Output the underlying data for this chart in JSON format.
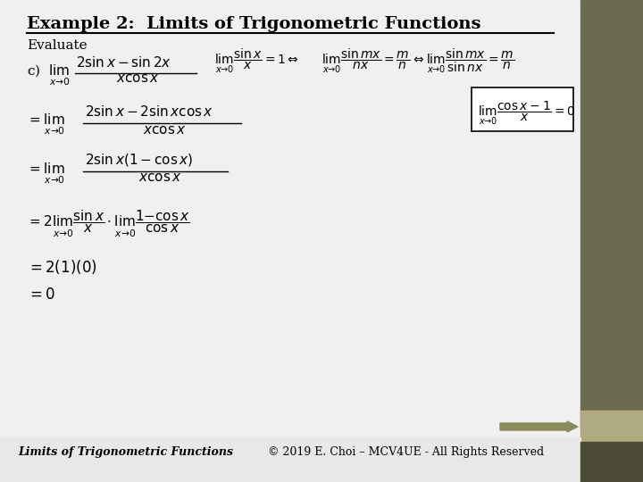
{
  "title": "Example 2:  Limits of Trigonometric Functions",
  "subtitle": "Evaluate",
  "bg_color": "#f0f0f0",
  "main_bg": "#f0f0f0",
  "sidebar_color": "#6b6b4f",
  "sidebar_light": "#b0aa80",
  "footer_left": "Limits of Trigonometric Functions",
  "footer_right": "© 2019 E. Choi – MCV4UE - All Rights Reserved",
  "arrow_color": "#8a8a5a",
  "box_line_color": "#000000",
  "text_color": "#000000"
}
